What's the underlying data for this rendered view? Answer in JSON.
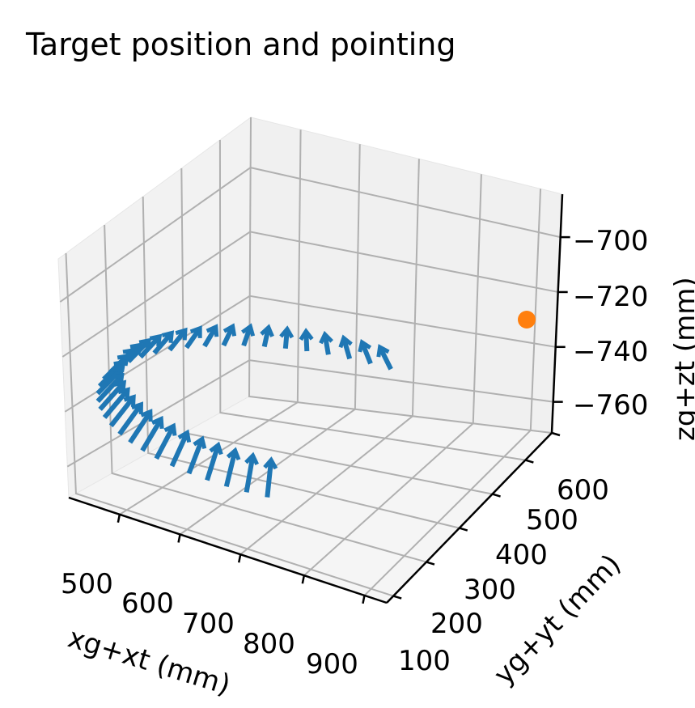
{
  "chart_data": {
    "type": "quiver3d",
    "title": "Target position and pointing",
    "xlabel": "xg+xt (mm)",
    "ylabel": "yg+yt (mm)",
    "zlabel": "zg+zt (mm)",
    "xticks": [
      "500",
      "600",
      "700",
      "800",
      "900"
    ],
    "yticks": [
      "100",
      "200",
      "300",
      "400",
      "500",
      "600"
    ],
    "zticks": [
      "−700",
      "−720",
      "−740",
      "−760"
    ],
    "grid": true,
    "arrow_color": "#1f77b4",
    "target_color": "#ff7f0e",
    "target_point": {
      "x": 950,
      "y": 620,
      "z": -725
    },
    "arrow_path": {
      "center": {
        "x": 700,
        "y": 350
      },
      "radius": 300,
      "start_deg": 95,
      "end_deg": 285,
      "z": -740,
      "count": 34
    }
  }
}
